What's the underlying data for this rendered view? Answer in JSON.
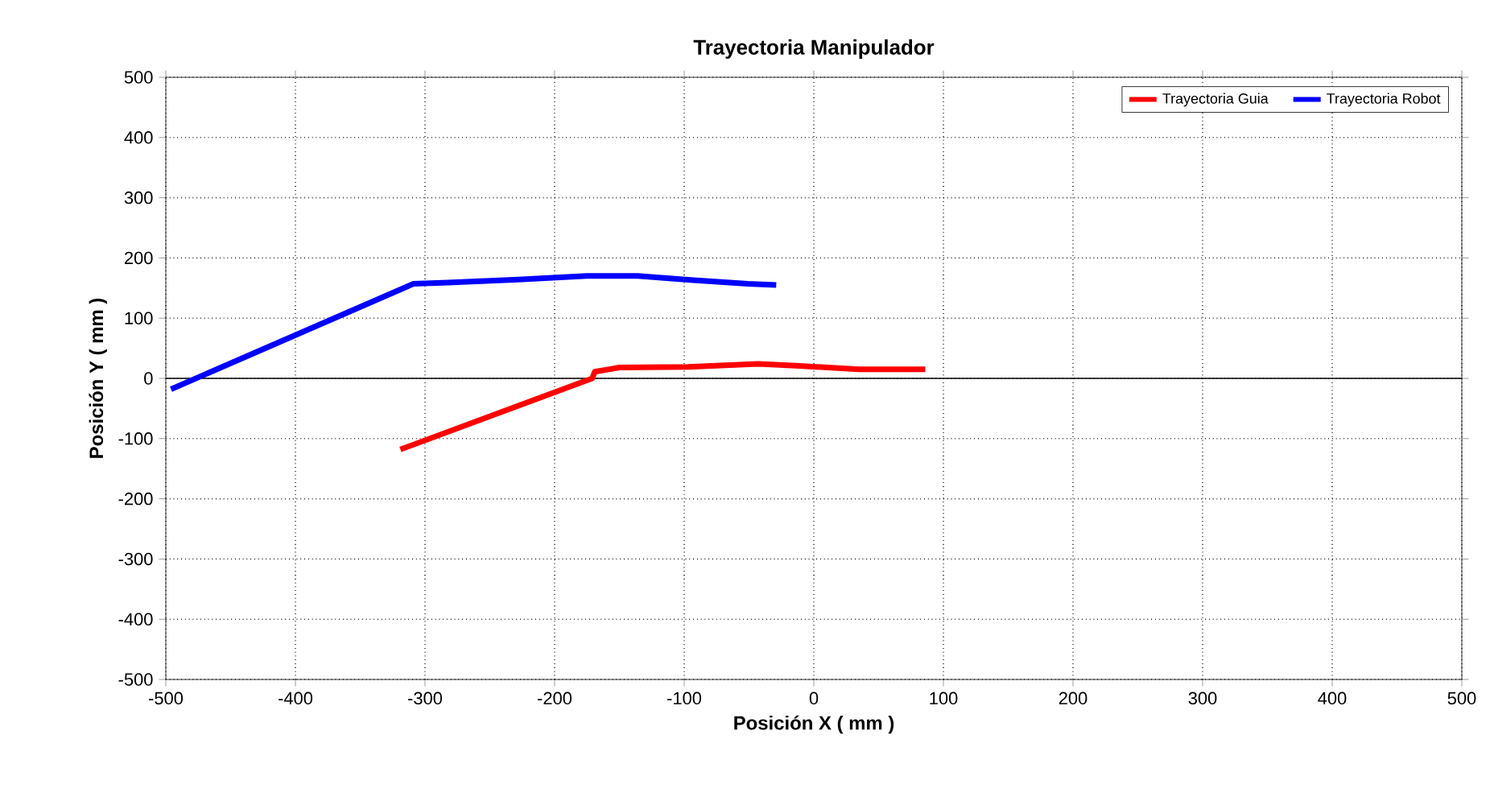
{
  "chart_data": {
    "type": "line",
    "title": "Trayectoria Manipulador",
    "xlabel": "Posición X ( mm )",
    "ylabel": "Posición Y ( mm )",
    "xlim": [
      -500,
      500
    ],
    "ylim": [
      -500,
      500
    ],
    "xticks": [
      -500,
      -400,
      -300,
      -200,
      -100,
      0,
      100,
      200,
      300,
      400,
      500
    ],
    "yticks": [
      -500,
      -400,
      -300,
      -200,
      -100,
      0,
      100,
      200,
      300,
      400,
      500
    ],
    "grid": true,
    "legend": "top right",
    "line_style": "solid",
    "marker": "none",
    "ref_lines": [
      {
        "axis": "y",
        "value": 0,
        "color": "#000000"
      }
    ],
    "series": [
      {
        "name": "Trayectoria Guia",
        "color": "#ff0000",
        "x": [
          -319,
          -171,
          -169,
          -150,
          -97,
          -43,
          -14,
          35,
          86
        ],
        "values": [
          -118,
          0,
          11,
          18,
          19,
          24,
          21,
          15,
          15
        ]
      },
      {
        "name": "Trayectoria Robot",
        "color": "#0000ff",
        "x": [
          -496,
          -309,
          -282,
          -228,
          -175,
          -136,
          -93,
          -51,
          -29
        ],
        "values": [
          -18,
          157,
          159,
          164,
          170,
          170,
          163,
          157,
          155
        ]
      }
    ]
  }
}
